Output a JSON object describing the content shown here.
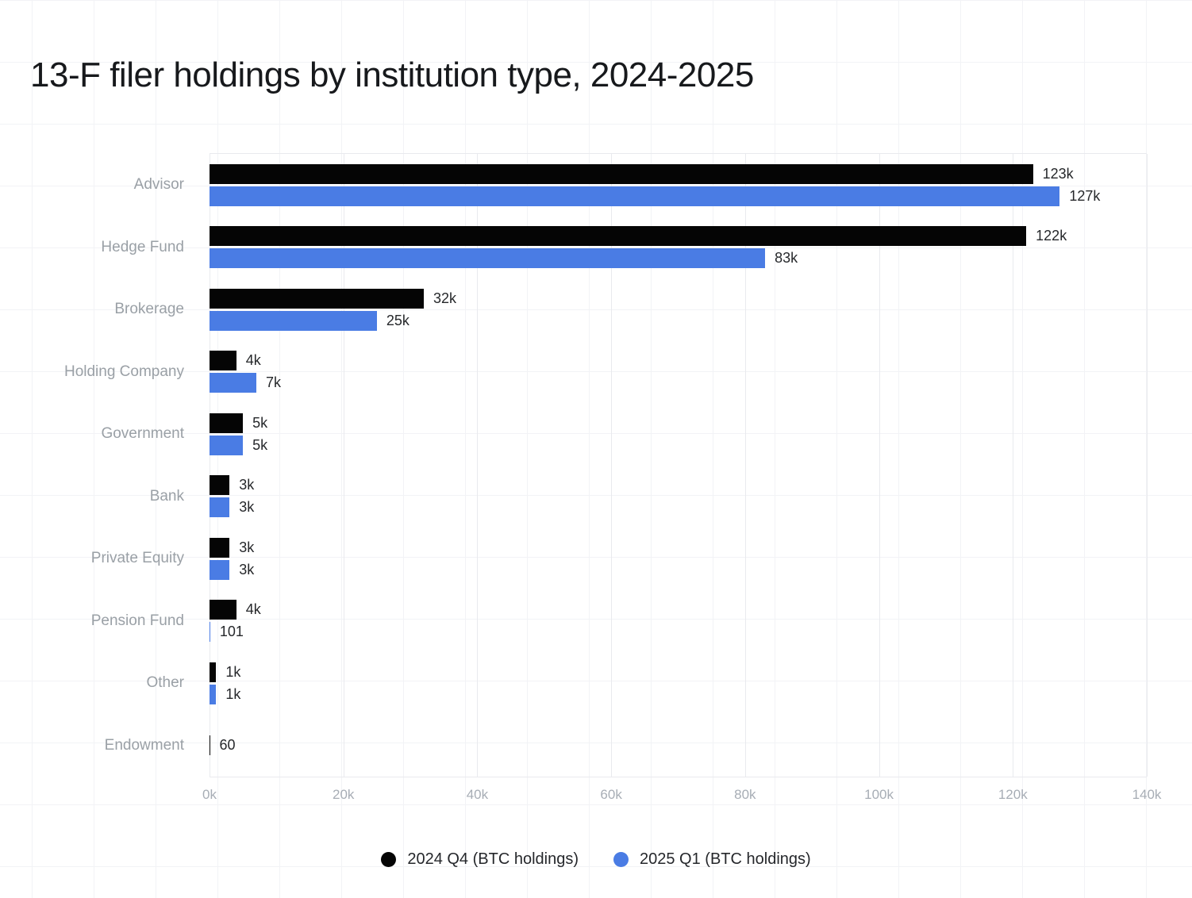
{
  "title": "13-F filer holdings by institution type, 2024-2025",
  "chart_data": {
    "type": "bar",
    "orientation": "horizontal",
    "title": "13-F filer holdings by institution type, 2024-2025",
    "categories": [
      "Advisor",
      "Hedge Fund",
      "Brokerage",
      "Holding Company",
      "Government",
      "Bank",
      "Private Equity",
      "Pension Fund",
      "Other",
      "Endowment"
    ],
    "series": [
      {
        "name": "2024 Q4 (BTC holdings)",
        "color": "#050505",
        "values": [
          123000,
          122000,
          32000,
          4000,
          5000,
          3000,
          3000,
          4000,
          1000,
          60
        ],
        "labels": [
          "123k",
          "122k",
          "32k",
          "4k",
          "5k",
          "3k",
          "3k",
          "4k",
          "1k",
          "60"
        ]
      },
      {
        "name": "2025 Q1 (BTC holdings)",
        "color": "#4a7ce4",
        "values": [
          127000,
          83000,
          25000,
          7000,
          5000,
          3000,
          3000,
          101,
          1000,
          null
        ],
        "labels": [
          "127k",
          "83k",
          "25k",
          "7k",
          "5k",
          "3k",
          "3k",
          "101",
          "1k",
          ""
        ]
      }
    ],
    "x_ticks": [
      "0k",
      "20k",
      "40k",
      "60k",
      "80k",
      "100k",
      "120k",
      "140k"
    ],
    "x_tick_values": [
      0,
      20000,
      40000,
      60000,
      80000,
      100000,
      120000,
      140000
    ],
    "xlim": [
      0,
      140000
    ],
    "grid": "vertical",
    "legend_position": "bottom-center",
    "value_label_position": "outside-right"
  }
}
